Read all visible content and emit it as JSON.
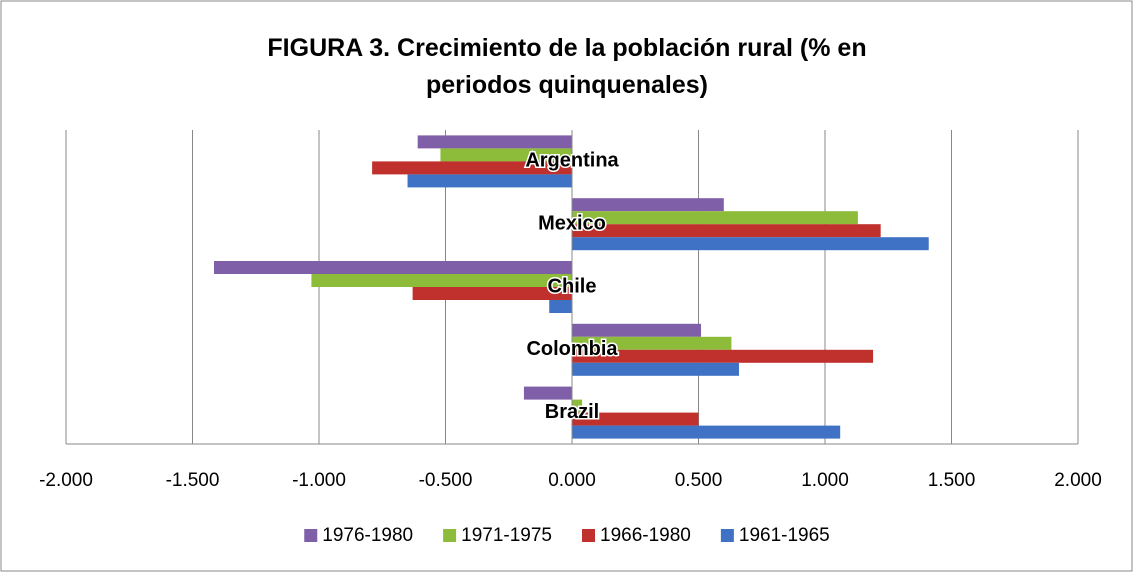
{
  "chart_data": {
    "type": "barh",
    "title": "FIGURA 3. Crecimiento de la población rural (% en periodos quinquenales)",
    "categories": [
      "Argentina",
      "Mexico",
      "Chile",
      "Colombia",
      "Brazil"
    ],
    "series": [
      {
        "name": "1976-1980",
        "color": "#7f5fa8",
        "values": [
          -0.61,
          0.6,
          -1.415,
          0.51,
          -0.19
        ]
      },
      {
        "name": "1971-1975",
        "color": "#8dbb3a",
        "values": [
          -0.52,
          1.13,
          -1.03,
          0.63,
          0.04
        ]
      },
      {
        "name": "1966-1980",
        "color": "#c0302c",
        "values": [
          -0.79,
          1.22,
          -0.63,
          1.19,
          0.5
        ]
      },
      {
        "name": "1961-1965",
        "color": "#3f72c4",
        "values": [
          -0.65,
          1.41,
          -0.09,
          0.66,
          1.06
        ]
      }
    ],
    "xlim": [
      -2,
      2
    ],
    "xticks": [
      {
        "value": -2,
        "label": "-2.000"
      },
      {
        "value": -1.5,
        "label": "-1.500"
      },
      {
        "value": -1,
        "label": "-1.000"
      },
      {
        "value": -0.5,
        "label": "-0.500"
      },
      {
        "value": 0,
        "label": "0.000"
      },
      {
        "value": 0.5,
        "label": "0.500"
      },
      {
        "value": 1,
        "label": "1.000"
      },
      {
        "value": 1.5,
        "label": "1.500"
      },
      {
        "value": 2,
        "label": "2.000"
      }
    ],
    "grid": true,
    "legend": "bottom"
  }
}
